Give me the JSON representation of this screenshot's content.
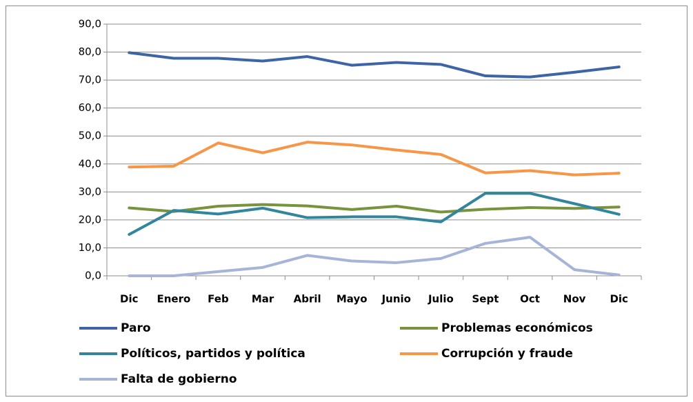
{
  "chart_data": {
    "type": "line",
    "categories": [
      "Dic",
      "Enero",
      "Feb",
      "Mar",
      "Abril",
      "Mayo",
      "Junio",
      "Julio",
      "Sept",
      "Oct",
      "Nov",
      "Dic"
    ],
    "series": [
      {
        "name": "Paro",
        "color": "#3d64a6",
        "values": [
          79.8,
          77.8,
          77.8,
          76.8,
          78.4,
          75.3,
          76.3,
          75.6,
          71.5,
          71.1,
          72.8,
          74.7
        ]
      },
      {
        "name": "Problemas económicos",
        "color": "#77933c",
        "values": [
          24.3,
          23.0,
          24.9,
          25.5,
          25.0,
          23.7,
          24.9,
          22.8,
          23.8,
          24.4,
          24.1,
          24.6
        ]
      },
      {
        "name": "Políticos, partidos y política",
        "color": "#31859c",
        "values": [
          14.8,
          23.4,
          22.1,
          24.2,
          20.8,
          21.1,
          21.1,
          19.3,
          29.5,
          29.5,
          25.8,
          22.0
        ]
      },
      {
        "name": "Corrupción y fraude",
        "color": "#f79646",
        "values": [
          38.9,
          39.2,
          47.5,
          44.0,
          47.8,
          46.8,
          45.0,
          43.4,
          36.8,
          37.6,
          36.1,
          36.7
        ]
      },
      {
        "name": "Falta de gobierno",
        "color": "#a5b4d7",
        "values": [
          0.0,
          0.0,
          1.5,
          3.0,
          7.3,
          5.3,
          4.7,
          6.2,
          11.6,
          13.8,
          2.2,
          0.3
        ]
      }
    ],
    "ylim": [
      0,
      90
    ],
    "yticks": [
      {
        "value": 0,
        "label": "0,0"
      },
      {
        "value": 10,
        "label": "10,0"
      },
      {
        "value": 20,
        "label": "20,0"
      },
      {
        "value": 30,
        "label": "30,0"
      },
      {
        "value": 40,
        "label": "40,0"
      },
      {
        "value": 50,
        "label": "50,0"
      },
      {
        "value": 60,
        "label": "60,0"
      },
      {
        "value": 70,
        "label": "70,0"
      },
      {
        "value": 80,
        "label": "80,0"
      },
      {
        "value": 90,
        "label": "90,0"
      }
    ],
    "grid": true
  }
}
